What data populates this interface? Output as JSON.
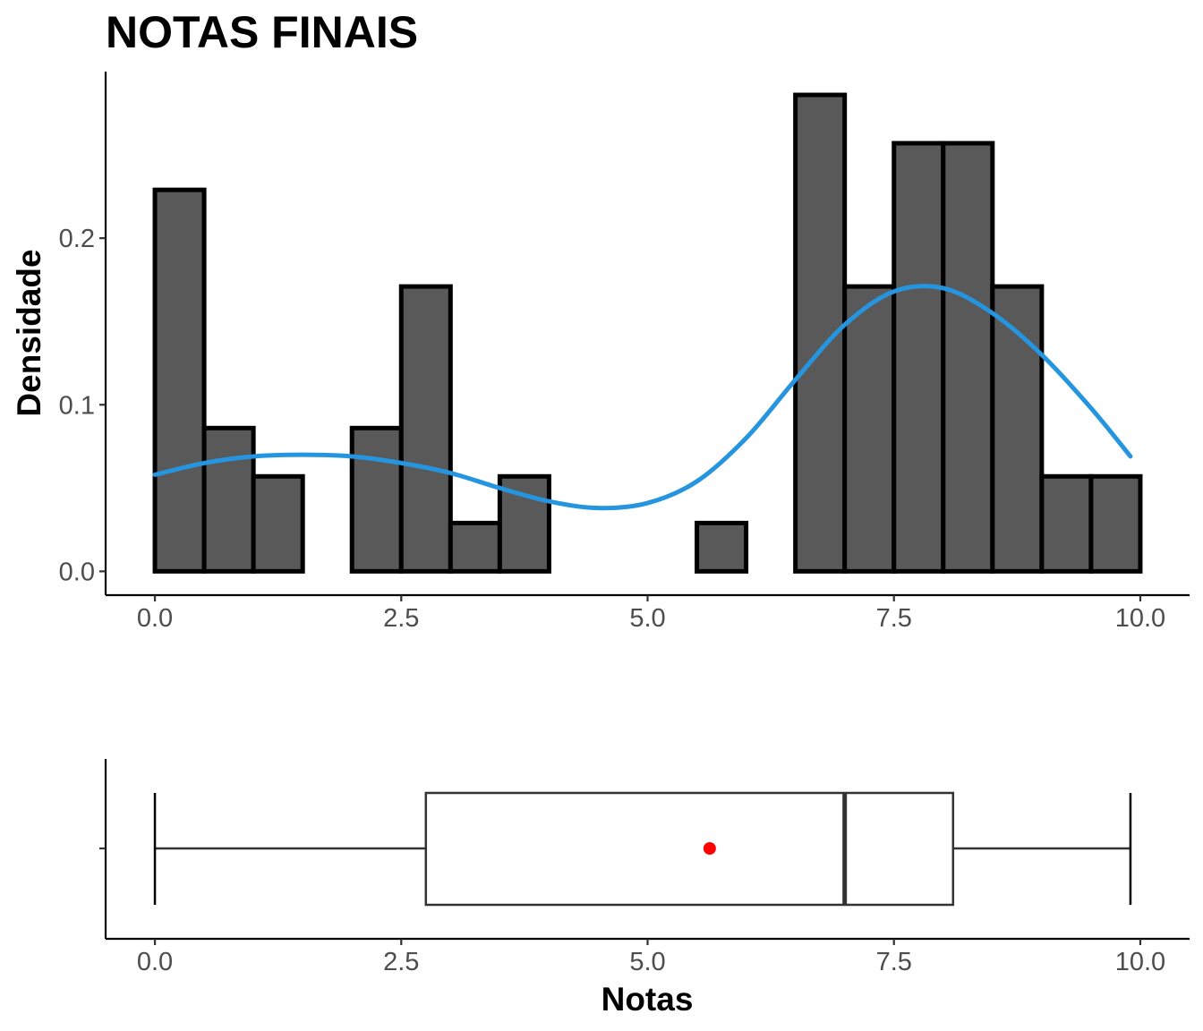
{
  "chart_data": [
    {
      "type": "histogram",
      "title": "NOTAS FINAIS",
      "ylabel": "Densidade",
      "xlabel": "",
      "bin_width": 0.5,
      "bins": [
        {
          "x0": 0.0,
          "x1": 0.5,
          "density": 0.229
        },
        {
          "x0": 0.5,
          "x1": 1.0,
          "density": 0.086
        },
        {
          "x0": 1.0,
          "x1": 1.5,
          "density": 0.057
        },
        {
          "x0": 1.5,
          "x1": 2.0,
          "density": 0.0
        },
        {
          "x0": 2.0,
          "x1": 2.5,
          "density": 0.086
        },
        {
          "x0": 2.5,
          "x1": 3.0,
          "density": 0.171
        },
        {
          "x0": 3.0,
          "x1": 3.5,
          "density": 0.029
        },
        {
          "x0": 3.5,
          "x1": 4.0,
          "density": 0.057
        },
        {
          "x0": 4.0,
          "x1": 4.5,
          "density": 0.0
        },
        {
          "x0": 4.5,
          "x1": 5.0,
          "density": 0.0
        },
        {
          "x0": 5.0,
          "x1": 5.5,
          "density": 0.0
        },
        {
          "x0": 5.5,
          "x1": 6.0,
          "density": 0.029
        },
        {
          "x0": 6.0,
          "x1": 6.5,
          "density": 0.0
        },
        {
          "x0": 6.5,
          "x1": 7.0,
          "density": 0.286
        },
        {
          "x0": 7.0,
          "x1": 7.5,
          "density": 0.171
        },
        {
          "x0": 7.5,
          "x1": 8.0,
          "density": 0.257
        },
        {
          "x0": 8.0,
          "x1": 8.5,
          "density": 0.257
        },
        {
          "x0": 8.5,
          "x1": 9.0,
          "density": 0.171
        },
        {
          "x0": 9.0,
          "x1": 9.5,
          "density": 0.057
        },
        {
          "x0": 9.5,
          "x1": 10.0,
          "density": 0.057
        }
      ],
      "density_curve": {
        "color": "#2595e0",
        "x": [
          0.0,
          0.5,
          1.0,
          1.5,
          2.0,
          2.5,
          3.0,
          3.5,
          4.0,
          4.5,
          5.0,
          5.5,
          6.0,
          6.5,
          7.0,
          7.5,
          8.0,
          8.5,
          9.0,
          9.5,
          9.9
        ],
        "y": [
          0.058,
          0.065,
          0.069,
          0.07,
          0.069,
          0.065,
          0.059,
          0.05,
          0.042,
          0.038,
          0.041,
          0.054,
          0.08,
          0.115,
          0.148,
          0.168,
          0.17,
          0.155,
          0.13,
          0.098,
          0.069
        ]
      },
      "bar_fill": "#595959",
      "bar_outline": "#000000",
      "xlim": [
        -0.5,
        10.5
      ],
      "ylim": [
        -0.0143,
        0.3
      ],
      "xticks": [
        {
          "value": 0.0,
          "label": "0.0"
        },
        {
          "value": 2.5,
          "label": "2.5"
        },
        {
          "value": 5.0,
          "label": "5.0"
        },
        {
          "value": 7.5,
          "label": "7.5"
        },
        {
          "value": 10.0,
          "label": "10.0"
        }
      ],
      "yticks": [
        {
          "value": 0.0,
          "label": "0.0"
        },
        {
          "value": 0.1,
          "label": "0.1"
        },
        {
          "value": 0.2,
          "label": "0.2"
        }
      ],
      "grid": false
    },
    {
      "type": "boxplot",
      "orientation": "horizontal",
      "xlabel": "Notas",
      "min": 0.0,
      "q1": 2.75,
      "median": 7.0,
      "q3": 8.1,
      "max": 9.9,
      "mean": 5.63,
      "mean_color": "#ff0000",
      "xlim": [
        -0.5,
        10.5
      ],
      "xticks": [
        {
          "value": 0.0,
          "label": "0.0"
        },
        {
          "value": 2.5,
          "label": "2.5"
        },
        {
          "value": 5.0,
          "label": "5.0"
        },
        {
          "value": 7.5,
          "label": "7.5"
        },
        {
          "value": 10.0,
          "label": "10.0"
        }
      ],
      "grid": false
    }
  ]
}
